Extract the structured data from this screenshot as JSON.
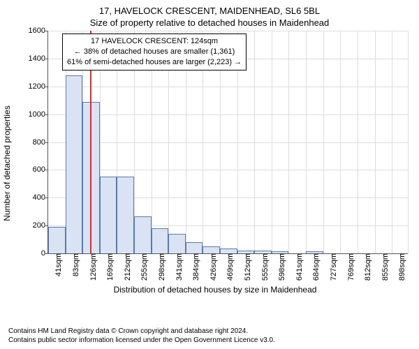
{
  "titles": {
    "main": "17, HAVELOCK CRESCENT, MAIDENHEAD, SL6 5BL",
    "sub": "Size of property relative to detached houses in Maidenhead"
  },
  "ylabel": "Number of detached properties",
  "xlabel": "Distribution of detached houses by size in Maidenhead",
  "footer": {
    "line1": "Contains HM Land Registry data © Crown copyright and database right 2024.",
    "line2": "Contains public sector information licensed under the Open Government Licence v3.0."
  },
  "annotation": {
    "line1": "17 HAVELOCK CRESCENT: 124sqm",
    "line2": "← 38% of detached houses are smaller (1,361)",
    "line3": "61% of semi-detached houses are larger (2,223) →"
  },
  "chart": {
    "type": "histogram",
    "ylim": [
      0,
      1600
    ],
    "ytick_step": 200,
    "xrange_start": 19.5,
    "xrange_end": 919.5,
    "bin_width_sqm": 43,
    "bar_color": "#d9e3f3",
    "bar_border_color": "#5b7aad",
    "grid_color": "#dddddd",
    "background_color": "#ffffff",
    "marker_color": "#cc3333",
    "marker_value_sqm": 124,
    "xtick_labels": [
      "41sqm",
      "83sqm",
      "126sqm",
      "169sqm",
      "212sqm",
      "255sqm",
      "298sqm",
      "341sqm",
      "384sqm",
      "426sqm",
      "469sqm",
      "512sqm",
      "555sqm",
      "598sqm",
      "641sqm",
      "684sqm",
      "727sqm",
      "769sqm",
      "812sqm",
      "855sqm",
      "898sqm"
    ],
    "bar_values": [
      190,
      1280,
      1090,
      550,
      550,
      265,
      180,
      140,
      80,
      50,
      35,
      20,
      20,
      15,
      0,
      15,
      0,
      0,
      0,
      0,
      0
    ]
  },
  "style": {
    "title_fontsize": 13,
    "axis_label_fontsize": 12,
    "tick_fontsize": 11,
    "annotation_fontsize": 11,
    "footer_fontsize": 10
  }
}
